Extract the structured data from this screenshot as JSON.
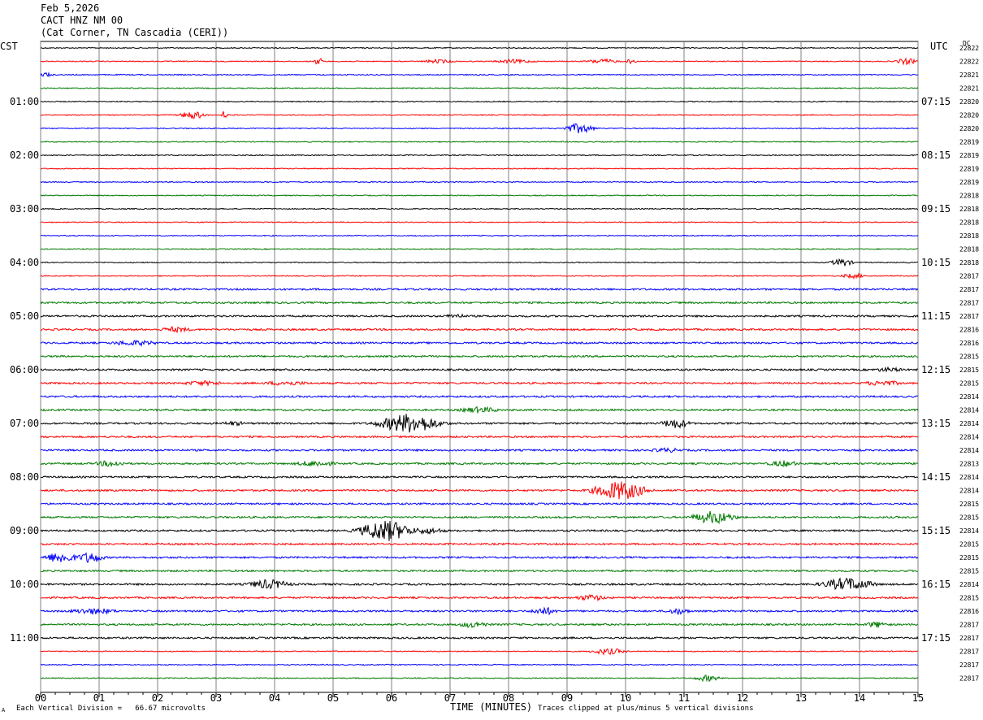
{
  "header": {
    "date": "Feb 5,2026",
    "station": "CACT HNZ NM 00",
    "location": "(Cat Corner, TN Cascadia (CERI))"
  },
  "left_axis_label": "CST",
  "right_axis_label": "UTC",
  "dc_label": "DC",
  "footer": {
    "scale_note": "Each Vertical Division =   66.67 microvolts",
    "xlabel": "TIME (MINUTES)",
    "clip_note": "Traces clipped at plus/minus 5 vertical divisions",
    "corner_mark": "A"
  },
  "colors": {
    "trace_cycle": [
      "#000000",
      "#ff0000",
      "#0000ff",
      "#007a00"
    ],
    "grid": "#808080"
  },
  "chart_data": {
    "type": "line",
    "title": "",
    "xlabel": "TIME (MINUTES)",
    "xlim": [
      0,
      15
    ],
    "x_ticks": [
      "00",
      "01",
      "02",
      "03",
      "04",
      "05",
      "06",
      "07",
      "08",
      "09",
      "10",
      "11",
      "12",
      "13",
      "14",
      "15"
    ],
    "num_traces": 48,
    "minutes_per_trace": 15,
    "left_time_labels": [
      {
        "trace": 4,
        "label": "01:00"
      },
      {
        "trace": 8,
        "label": "02:00"
      },
      {
        "trace": 12,
        "label": "03:00"
      },
      {
        "trace": 16,
        "label": "04:00"
      },
      {
        "trace": 20,
        "label": "05:00"
      },
      {
        "trace": 24,
        "label": "06:00"
      },
      {
        "trace": 28,
        "label": "07:00"
      },
      {
        "trace": 32,
        "label": "08:00"
      },
      {
        "trace": 36,
        "label": "09:00"
      },
      {
        "trace": 40,
        "label": "10:00"
      },
      {
        "trace": 44,
        "label": "11:00"
      }
    ],
    "right_time_labels": [
      {
        "trace": 4,
        "label": "07:15"
      },
      {
        "trace": 8,
        "label": "08:15"
      },
      {
        "trace": 12,
        "label": "09:15"
      },
      {
        "trace": 16,
        "label": "10:15"
      },
      {
        "trace": 20,
        "label": "11:15"
      },
      {
        "trace": 24,
        "label": "12:15"
      },
      {
        "trace": 28,
        "label": "13:15"
      },
      {
        "trace": 32,
        "label": "14:15"
      },
      {
        "trace": 36,
        "label": "15:15"
      },
      {
        "trace": 40,
        "label": "16:15"
      },
      {
        "trace": 44,
        "label": "17:15"
      }
    ],
    "dc_values": [
      "22822",
      "22822",
      "22821",
      "22821",
      "22820",
      "22820",
      "22820",
      "22819",
      "22819",
      "22819",
      "22819",
      "22818",
      "22818",
      "22818",
      "22818",
      "22818",
      "22818",
      "22817",
      "22817",
      "22817",
      "22817",
      "22816",
      "22816",
      "22815",
      "22815",
      "22815",
      "22814",
      "22814",
      "22814",
      "22814",
      "22814",
      "22813",
      "22814",
      "22814",
      "22815",
      "22815",
      "22814",
      "22815",
      "22815",
      "22815",
      "22814",
      "22815",
      "22816",
      "22817",
      "22817",
      "22817",
      "22817",
      "22817"
    ],
    "events": [
      {
        "trace": 1,
        "minute": 4.75,
        "amp": 6,
        "dur": 0.08
      },
      {
        "trace": 1,
        "minute": 6.8,
        "amp": 2.5,
        "dur": 0.4
      },
      {
        "trace": 1,
        "minute": 8.1,
        "amp": 2.5,
        "dur": 0.5
      },
      {
        "trace": 1,
        "minute": 9.6,
        "amp": 3,
        "dur": 0.4
      },
      {
        "trace": 1,
        "minute": 10.1,
        "amp": 4,
        "dur": 0.1
      },
      {
        "trace": 1,
        "minute": 14.8,
        "amp": 4,
        "dur": 0.25
      },
      {
        "trace": 2,
        "minute": 0.1,
        "amp": 3,
        "dur": 0.15
      },
      {
        "trace": 5,
        "minute": 2.6,
        "amp": 5,
        "dur": 0.3
      },
      {
        "trace": 5,
        "minute": 3.15,
        "amp": 7,
        "dur": 0.06
      },
      {
        "trace": 6,
        "minute": 9.2,
        "amp": 6,
        "dur": 0.35
      },
      {
        "trace": 16,
        "minute": 13.7,
        "amp": 5,
        "dur": 0.25
      },
      {
        "trace": 17,
        "minute": 13.9,
        "amp": 3,
        "dur": 0.3
      },
      {
        "trace": 20,
        "minute": 7.1,
        "amp": 3,
        "dur": 0.3
      },
      {
        "trace": 21,
        "minute": 2.3,
        "amp": 3.5,
        "dur": 0.4
      },
      {
        "trace": 22,
        "minute": 1.6,
        "amp": 3.5,
        "dur": 0.6
      },
      {
        "trace": 24,
        "minute": 14.5,
        "amp": 3,
        "dur": 0.4
      },
      {
        "trace": 25,
        "minute": 2.8,
        "amp": 3,
        "dur": 0.6
      },
      {
        "trace": 25,
        "minute": 4.2,
        "amp": 3,
        "dur": 0.6
      },
      {
        "trace": 25,
        "minute": 14.4,
        "amp": 3.5,
        "dur": 0.5
      },
      {
        "trace": 27,
        "minute": 7.5,
        "amp": 4,
        "dur": 0.5
      },
      {
        "trace": 28,
        "minute": 6.3,
        "amp": 12,
        "dur": 0.7
      },
      {
        "trace": 28,
        "minute": 10.85,
        "amp": 6,
        "dur": 0.35
      },
      {
        "trace": 28,
        "minute": 3.3,
        "amp": 3,
        "dur": 0.3
      },
      {
        "trace": 30,
        "minute": 10.7,
        "amp": 3,
        "dur": 0.4
      },
      {
        "trace": 31,
        "minute": 1.2,
        "amp": 4,
        "dur": 0.4
      },
      {
        "trace": 31,
        "minute": 4.7,
        "amp": 4,
        "dur": 0.5
      },
      {
        "trace": 31,
        "minute": 12.7,
        "amp": 4,
        "dur": 0.4
      },
      {
        "trace": 33,
        "minute": 9.9,
        "amp": 12,
        "dur": 0.6
      },
      {
        "trace": 35,
        "minute": 11.5,
        "amp": 8,
        "dur": 0.5
      },
      {
        "trace": 36,
        "minute": 5.9,
        "amp": 13,
        "dur": 0.6
      },
      {
        "trace": 36,
        "minute": 6.6,
        "amp": 4,
        "dur": 0.5
      },
      {
        "trace": 38,
        "minute": 0.35,
        "amp": 7,
        "dur": 0.4
      },
      {
        "trace": 38,
        "minute": 0.85,
        "amp": 7,
        "dur": 0.3
      },
      {
        "trace": 40,
        "minute": 3.9,
        "amp": 6,
        "dur": 0.5
      },
      {
        "trace": 40,
        "minute": 13.8,
        "amp": 8,
        "dur": 0.6
      },
      {
        "trace": 41,
        "minute": 9.4,
        "amp": 4,
        "dur": 0.4
      },
      {
        "trace": 42,
        "minute": 0.9,
        "amp": 4,
        "dur": 0.6
      },
      {
        "trace": 42,
        "minute": 8.6,
        "amp": 5,
        "dur": 0.3
      },
      {
        "trace": 42,
        "minute": 10.9,
        "amp": 4,
        "dur": 0.3
      },
      {
        "trace": 43,
        "minute": 7.4,
        "amp": 4,
        "dur": 0.4
      },
      {
        "trace": 43,
        "minute": 14.3,
        "amp": 4,
        "dur": 0.3
      },
      {
        "trace": 45,
        "minute": 9.7,
        "amp": 4,
        "dur": 0.4
      },
      {
        "trace": 47,
        "minute": 11.4,
        "amp": 4,
        "dur": 0.3
      }
    ]
  }
}
